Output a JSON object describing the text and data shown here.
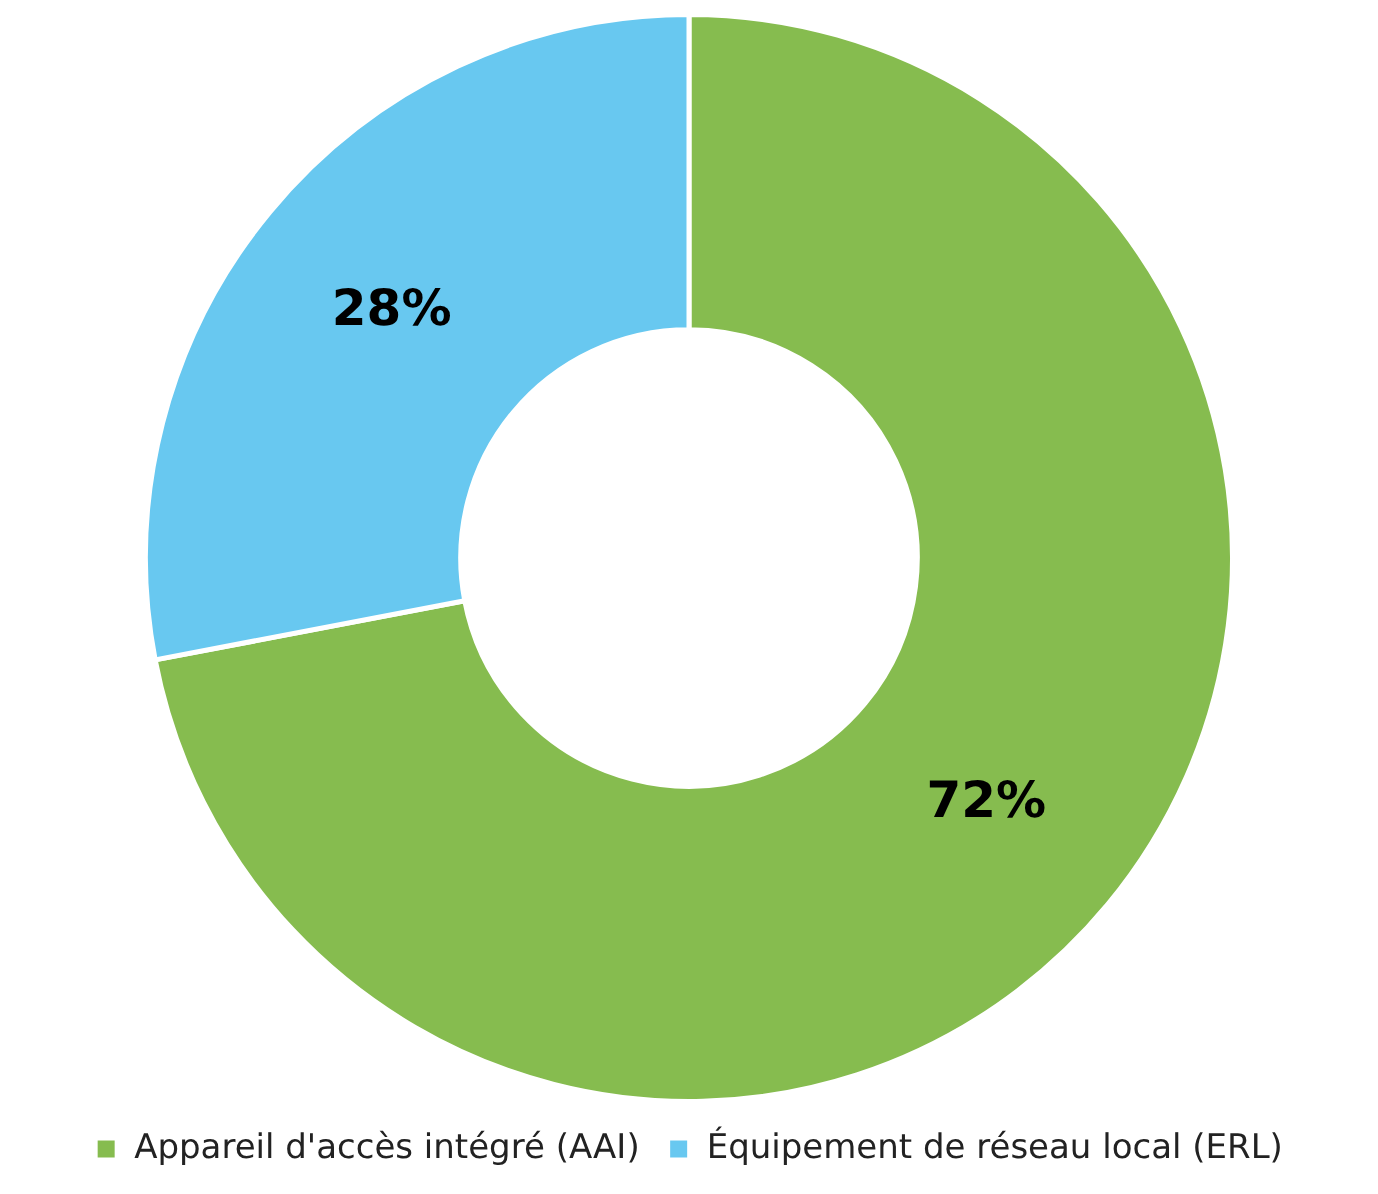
{
  "chart_data": {
    "type": "donut",
    "categories": [
      "Appareil d'accès intégré (AAI)",
      "Équipement de réseau local (ERL)"
    ],
    "values": [
      72,
      28
    ],
    "colors": [
      "#86bc4f",
      "#68c8f0"
    ],
    "value_labels": [
      "72%",
      "28%"
    ],
    "legend": "bottom"
  }
}
